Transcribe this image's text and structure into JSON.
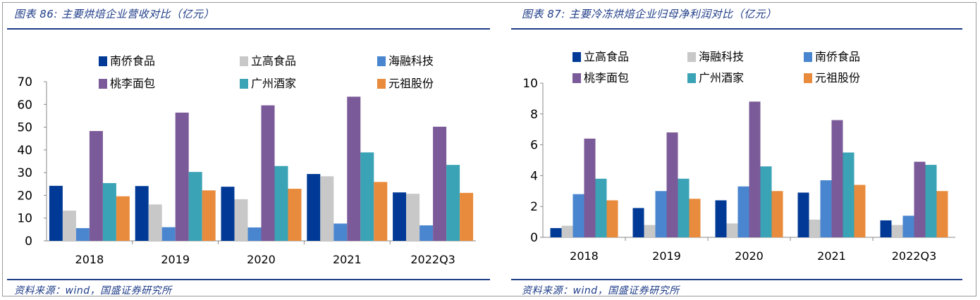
{
  "figures": [
    {
      "title": "图表 86:  主要烘焙企业营收对比（亿元）",
      "source": "资料来源：wind，国盛证券研究所"
    },
    {
      "title": "图表 87:  主要冷冻烘焙企业归母净利润对比（亿元）",
      "source": "资料来源：wind，国盛证券研究所"
    }
  ],
  "chart_data": [
    {
      "type": "bar",
      "title": "图表 86:  主要烘焙企业营收对比（亿元）",
      "categories": [
        "2018",
        "2019",
        "2020",
        "2021",
        "2022Q3"
      ],
      "ylim": [
        0,
        70
      ],
      "yticks": [
        0,
        10,
        20,
        30,
        40,
        50,
        60,
        70
      ],
      "grid": false,
      "legend_position": "top",
      "series": [
        {
          "name": "南侨食品",
          "color": "#003a96",
          "values": [
            24.2,
            24.1,
            23.8,
            29.4,
            21.3
          ]
        },
        {
          "name": "立高食品",
          "color": "#c8c8c8",
          "values": [
            13.3,
            16.0,
            18.3,
            28.4,
            20.7
          ]
        },
        {
          "name": "海融科技",
          "color": "#4a86cf",
          "values": [
            5.6,
            6.0,
            5.9,
            7.6,
            6.8
          ]
        },
        {
          "name": "桃李面包",
          "color": "#7a5a98",
          "values": [
            48.3,
            56.4,
            59.6,
            63.4,
            50.2
          ]
        },
        {
          "name": "广州酒家",
          "color": "#3aa3b5",
          "values": [
            25.4,
            30.3,
            32.9,
            38.9,
            33.4
          ]
        },
        {
          "name": "元祖股份",
          "color": "#e98b3c",
          "values": [
            19.6,
            22.2,
            22.9,
            25.9,
            21.1
          ]
        }
      ]
    },
    {
      "type": "bar",
      "title": "图表 87:  主要冷冻烘焙企业归母净利润对比（亿元）",
      "categories": [
        "2018",
        "2019",
        "2020",
        "2021",
        "2022Q3"
      ],
      "ylim": [
        0,
        10
      ],
      "yticks": [
        0,
        2,
        4,
        6,
        8,
        10
      ],
      "grid": false,
      "legend_position": "top",
      "series": [
        {
          "name": "立高食品",
          "color": "#003a96",
          "values": [
            0.6,
            1.9,
            2.4,
            2.9,
            1.1
          ]
        },
        {
          "name": "海融科技",
          "color": "#c8c8c8",
          "values": [
            0.75,
            0.8,
            0.9,
            1.15,
            0.8
          ]
        },
        {
          "name": "南侨食品",
          "color": "#4a86cf",
          "values": [
            2.8,
            3.0,
            3.3,
            3.7,
            1.4
          ]
        },
        {
          "name": "桃李面包",
          "color": "#7a5a98",
          "values": [
            6.4,
            6.8,
            8.8,
            7.6,
            4.9
          ]
        },
        {
          "name": "广州酒家",
          "color": "#3aa3b5",
          "values": [
            3.8,
            3.8,
            4.6,
            5.5,
            4.7
          ]
        },
        {
          "name": "元祖股份",
          "color": "#e98b3c",
          "values": [
            2.4,
            2.5,
            3.0,
            3.4,
            3.0
          ]
        }
      ]
    }
  ]
}
